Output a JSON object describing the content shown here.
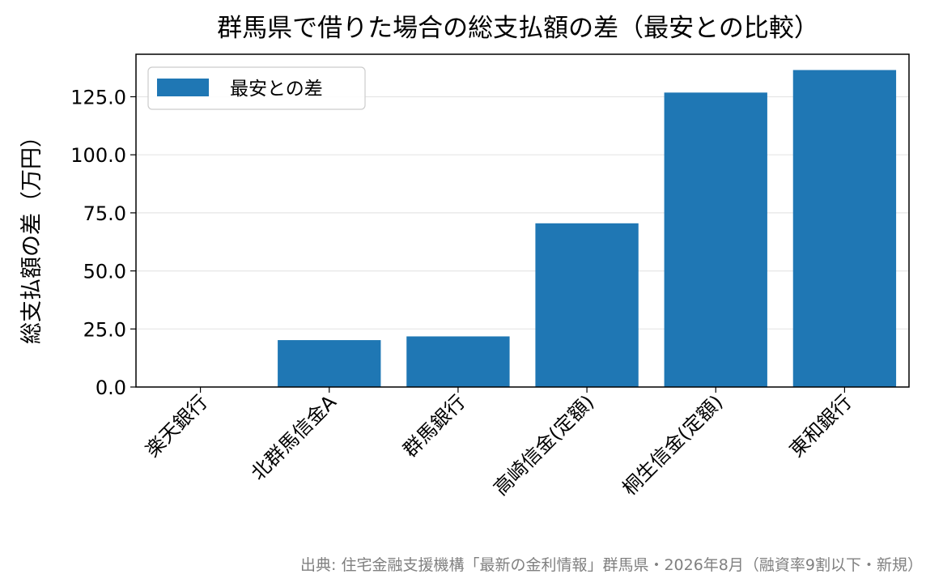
{
  "chart_data": {
    "type": "bar",
    "title": "群馬県で借りた場合の総支払額の差（最安との比較）",
    "xlabel": "",
    "ylabel": "総支払額の差（万円）",
    "categories": [
      "楽天銀行",
      "北群馬信金A",
      "群馬銀行",
      "高崎信金(定額)",
      "桐生信金(定額)",
      "東和銀行"
    ],
    "series": [
      {
        "name": "最安との差",
        "values": [
          0,
          20.2,
          21.8,
          70.5,
          126.8,
          136.5
        ],
        "color": "#1f77b4"
      }
    ],
    "ylim": [
      0,
      143.3
    ],
    "yticks": [
      0,
      25,
      50,
      75,
      100,
      125
    ],
    "ytick_labels": [
      "0.0",
      "25.0",
      "50.0",
      "75.0",
      "100.0",
      "125.0"
    ],
    "grid": "horizontal",
    "legend": "top-left",
    "source_note": "出典: 住宅金融支援機構「最新の金利情報」群馬県・2026年8月（融資率9割以下・新規）"
  }
}
